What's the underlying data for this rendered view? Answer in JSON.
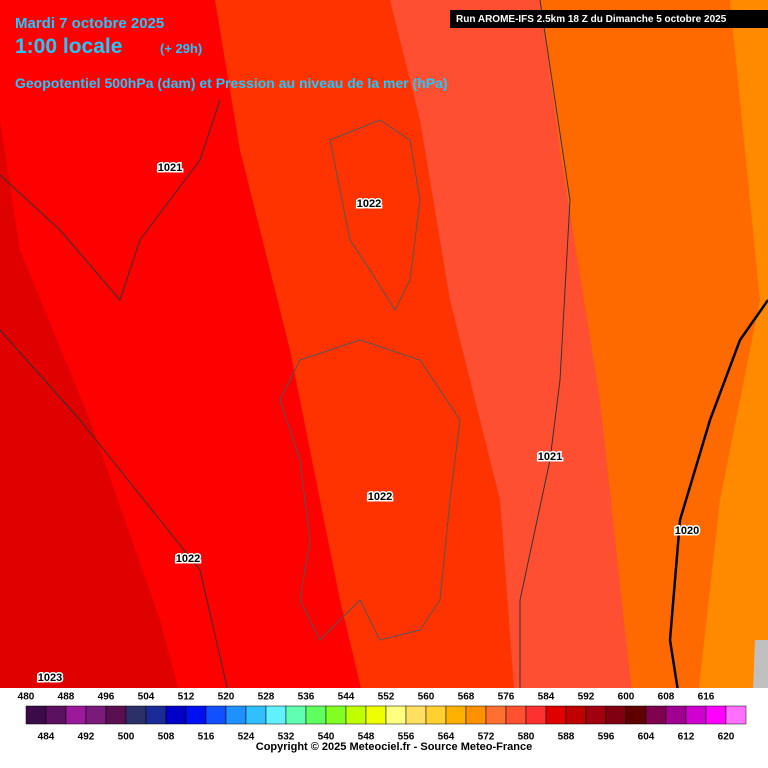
{
  "header": {
    "date": "Mardi 7 octobre 2025",
    "time": "1:00 locale",
    "lead": "(+ 29h)",
    "subtitle": "Geopotentiel 500hPa (dam) et Pression au niveau de la mer (hPa)",
    "run": "Run AROME-IFS 2.5km 18 Z du Dimanche 5 octobre 2025"
  },
  "isobar_labels": [
    "1021",
    "1022",
    "1022",
    "1021",
    "1020",
    "1022",
    "1023"
  ],
  "legend": {
    "labels": [
      480,
      484,
      488,
      492,
      496,
      500,
      504,
      508,
      512,
      516,
      520,
      524,
      528,
      532,
      536,
      540,
      544,
      548,
      552,
      556,
      560,
      564,
      568,
      572,
      576,
      580,
      584,
      588,
      592,
      596,
      600,
      604,
      608,
      612,
      616,
      620
    ],
    "colors": [
      "#3c0a48",
      "#5c1060",
      "#9a1a9a",
      "#7a1a7a",
      "#5a1050",
      "#2c3068",
      "#1a2a96",
      "#0000c8",
      "#0010f0",
      "#1050ff",
      "#1e90ff",
      "#30c0ff",
      "#60f0ff",
      "#60ffb0",
      "#60ff60",
      "#80ff20",
      "#c0ff00",
      "#f0ff00",
      "#ffff80",
      "#ffe060",
      "#ffd030",
      "#ffb000",
      "#ff9000",
      "#ff7030",
      "#ff5030",
      "#ff3030",
      "#e00000",
      "#c00000",
      "#a00010",
      "#800010",
      "#600000",
      "#800050",
      "#a00090",
      "#d000d0",
      "#ff00ff",
      "#ff70ff"
    ]
  },
  "copyright": "Copyright © 2025 Meteociel.fr - Source Meteo-France"
}
